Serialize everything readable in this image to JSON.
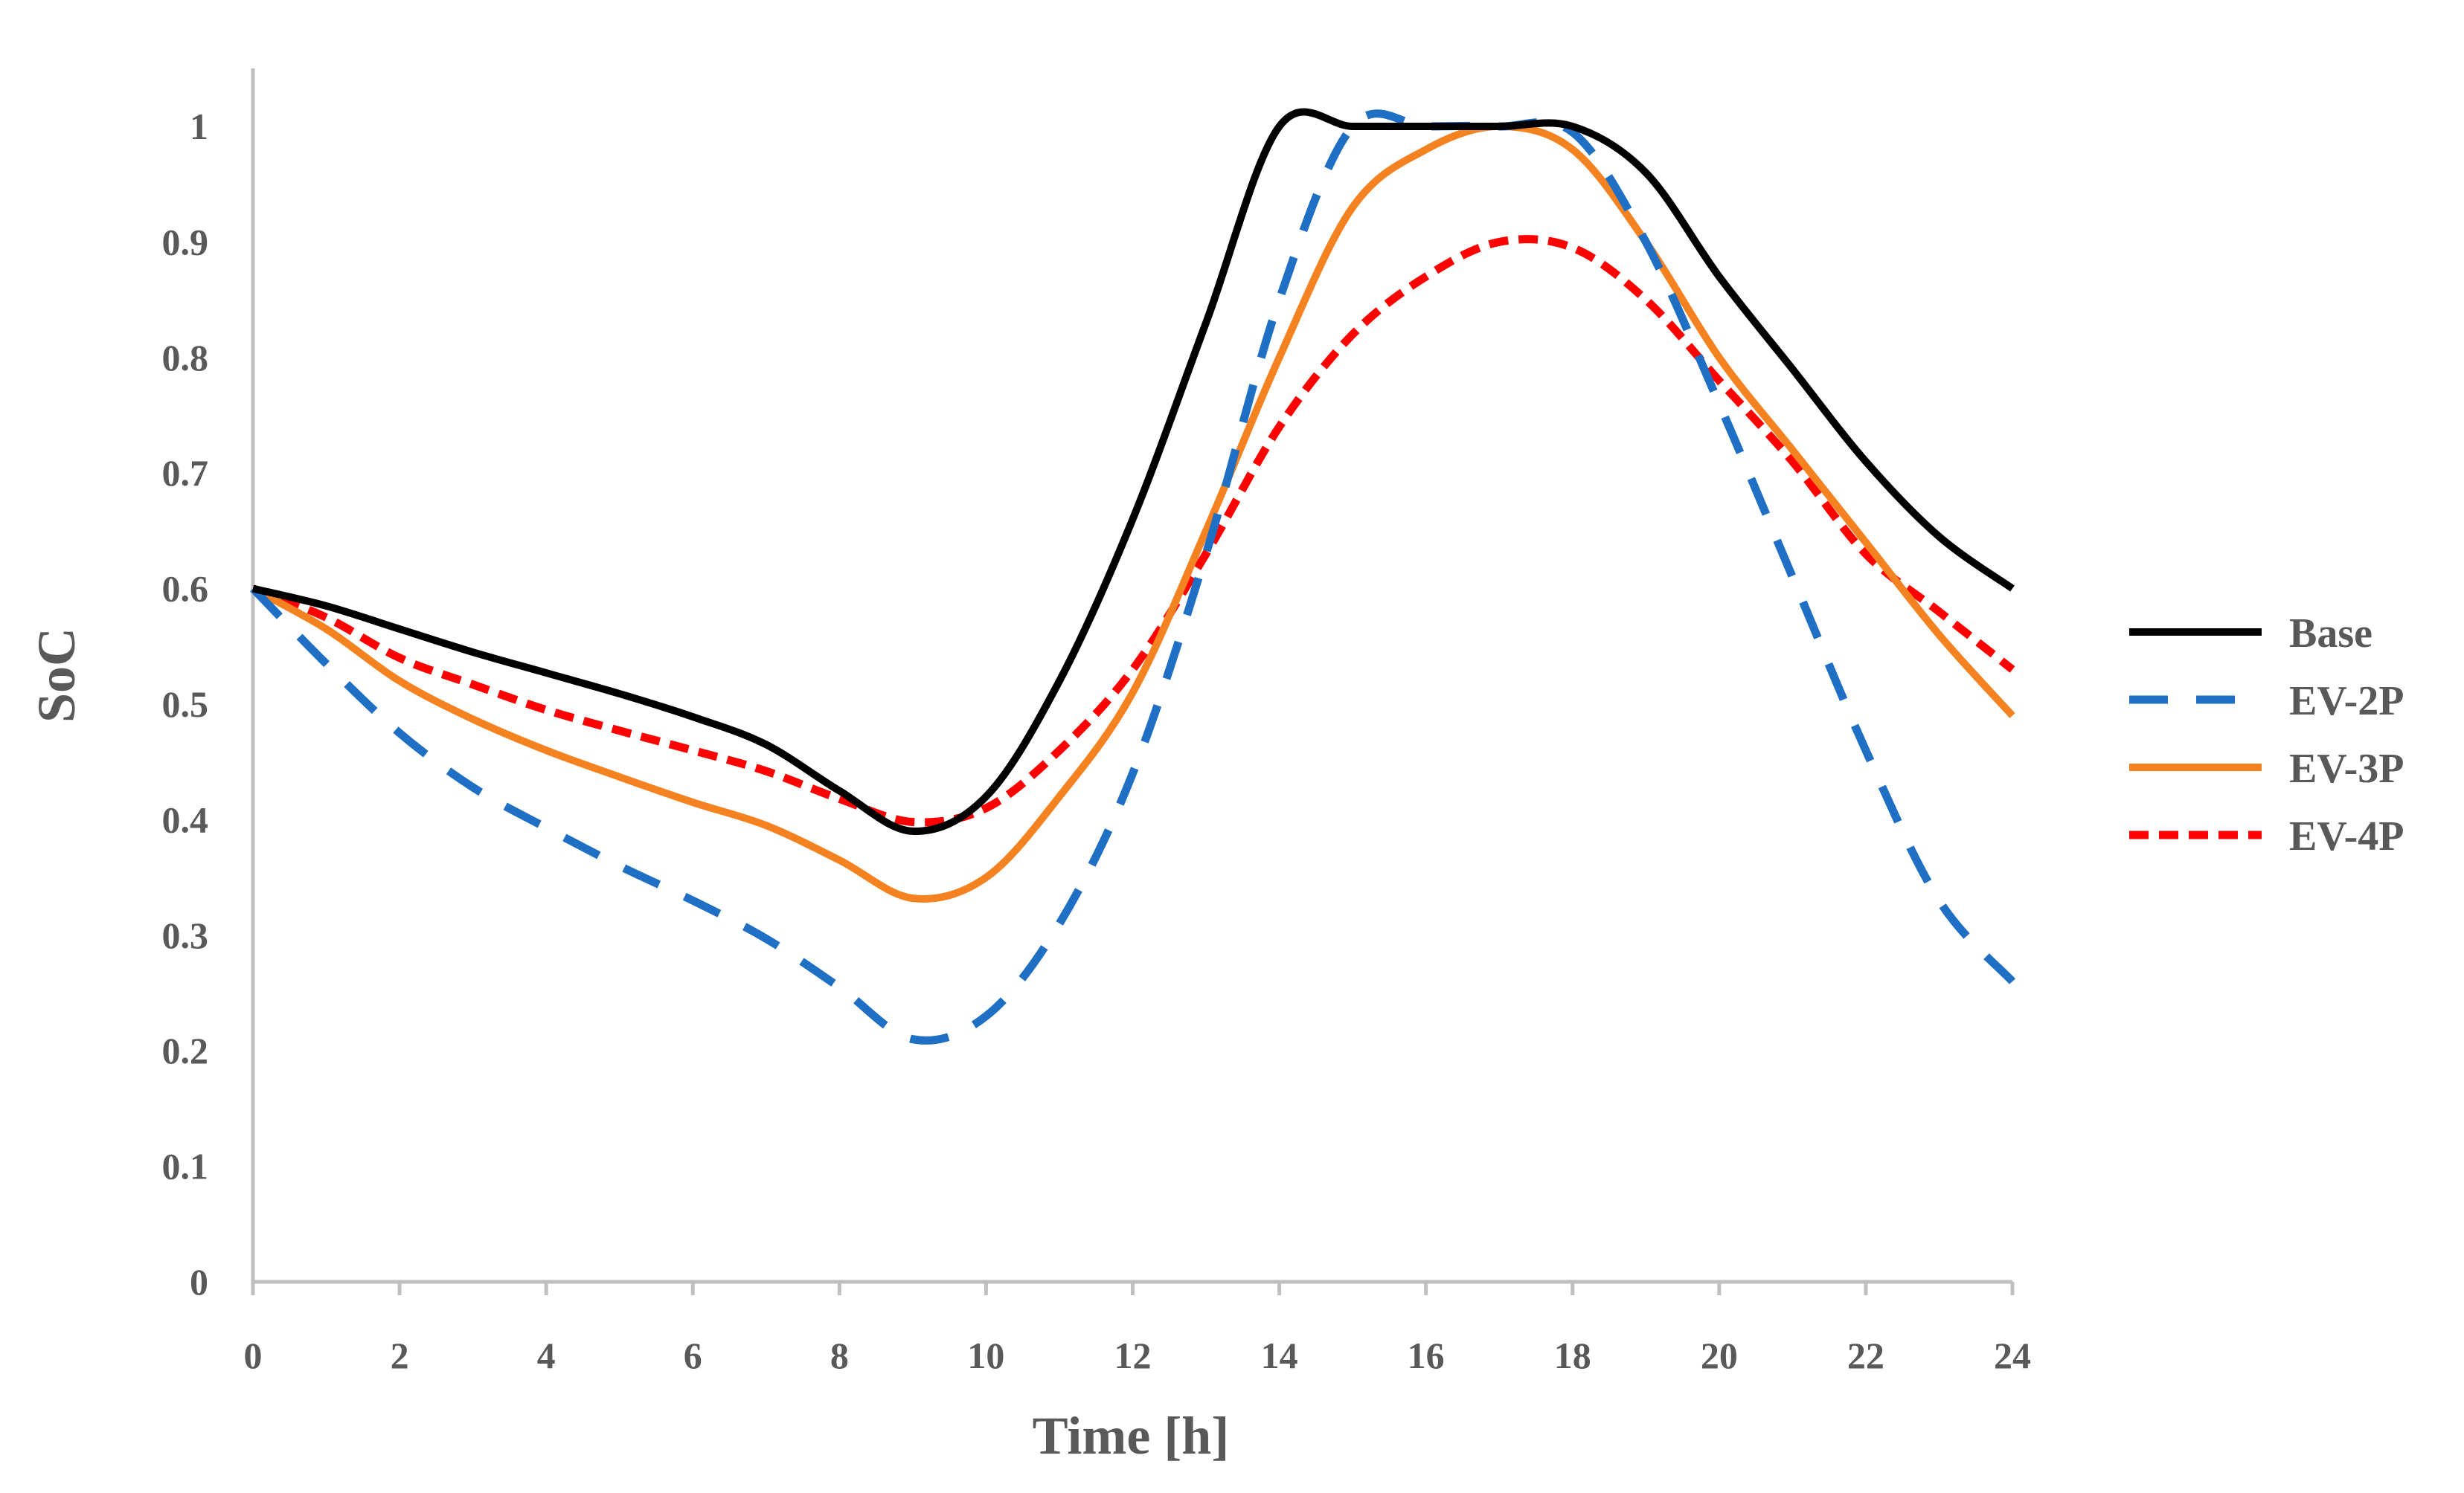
{
  "chart_data": {
    "type": "line",
    "title": "",
    "xlabel": "Time [h]",
    "ylabel": "SoC",
    "xlim": [
      0,
      24
    ],
    "ylim": [
      0,
      1
    ],
    "x_ticks": [
      0,
      2,
      4,
      6,
      8,
      10,
      12,
      14,
      16,
      18,
      20,
      22,
      24
    ],
    "y_ticks": [
      0,
      0.1,
      0.2,
      0.3,
      0.4,
      0.5,
      0.6,
      0.7,
      0.8,
      0.9,
      1
    ],
    "y_tick_labels": [
      "0",
      "0.1",
      "0.2",
      "0.3",
      "0.4",
      "0.5",
      "0.6",
      "0.7",
      "0.8",
      "0.9",
      "1"
    ],
    "x_tick_labels": [
      "0",
      "2",
      "4",
      "6",
      "8",
      "10",
      "12",
      "14",
      "16",
      "18",
      "20",
      "22",
      "24"
    ],
    "grid": false,
    "legend_position": "right",
    "x": [
      0,
      1,
      2,
      3,
      4,
      5,
      6,
      7,
      8,
      9,
      10,
      11,
      12,
      13,
      14,
      15,
      16,
      17,
      18,
      19,
      20,
      21,
      22,
      23,
      24
    ],
    "series": [
      {
        "name": "Base",
        "color": "#000000",
        "dash": "solid",
        "values": [
          0.6,
          0.585,
          0.565,
          0.545,
          0.527,
          0.509,
          0.489,
          0.465,
          0.425,
          0.39,
          0.42,
          0.52,
          0.66,
          0.83,
          1.0,
          1.0,
          1.0,
          1.0,
          1.0,
          0.96,
          0.87,
          0.79,
          0.71,
          0.645,
          0.6
        ]
      },
      {
        "name": "EV-2P",
        "color": "#1f6fc5",
        "dash": "dashed",
        "values": [
          0.6,
          0.535,
          0.475,
          0.428,
          0.393,
          0.36,
          0.33,
          0.297,
          0.255,
          0.21,
          0.23,
          0.31,
          0.44,
          0.63,
          0.85,
          1.0,
          1.0,
          1.0,
          0.995,
          0.9,
          0.76,
          0.61,
          0.46,
          0.33,
          0.26
        ]
      },
      {
        "name": "EV-3P",
        "color": "#f58220",
        "dash": "solid",
        "values": [
          0.6,
          0.565,
          0.52,
          0.487,
          0.46,
          0.437,
          0.415,
          0.395,
          0.365,
          0.332,
          0.35,
          0.42,
          0.51,
          0.65,
          0.8,
          0.93,
          0.98,
          1.0,
          0.98,
          0.9,
          0.8,
          0.72,
          0.64,
          0.56,
          0.49
        ]
      },
      {
        "name": "EV-4P",
        "color": "#ff0000",
        "dash": "dotted",
        "values": [
          0.6,
          0.575,
          0.54,
          0.517,
          0.495,
          0.477,
          0.46,
          0.442,
          0.418,
          0.398,
          0.41,
          0.46,
          0.53,
          0.63,
          0.74,
          0.82,
          0.87,
          0.9,
          0.895,
          0.85,
          0.78,
          0.71,
          0.63,
          0.58,
          0.53
        ]
      }
    ]
  }
}
